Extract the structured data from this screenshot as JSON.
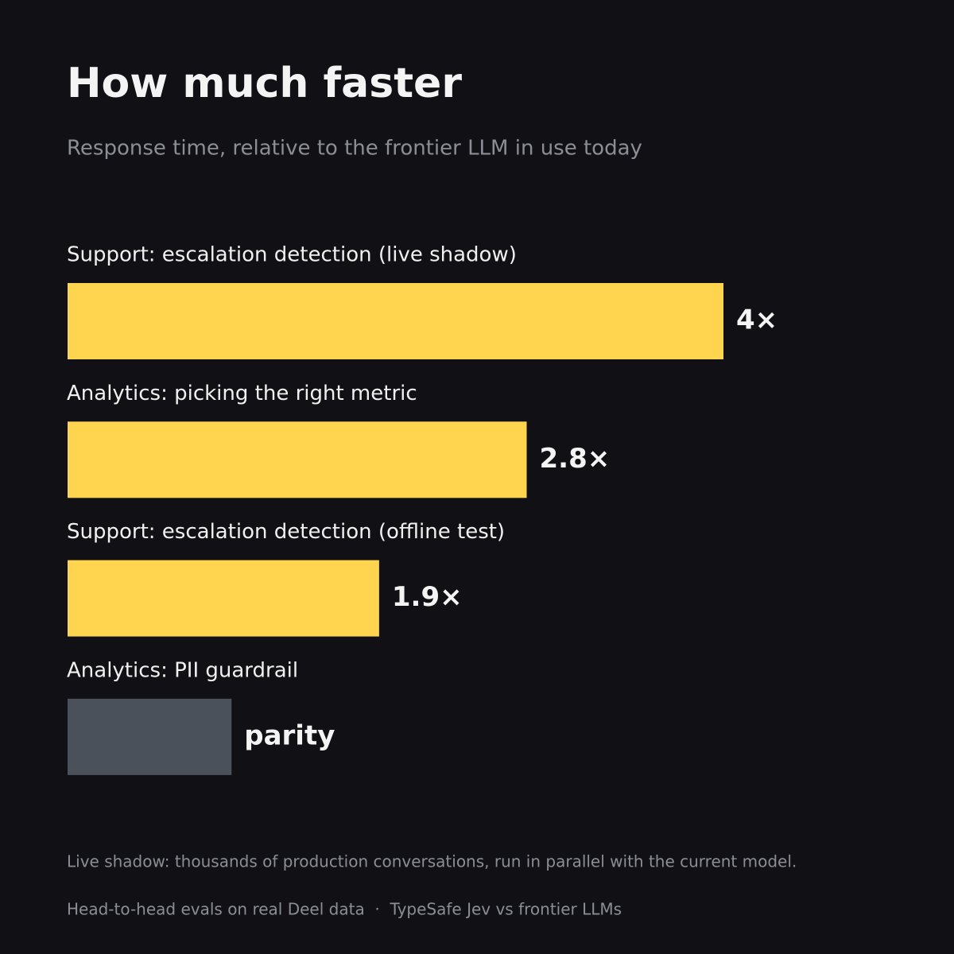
{
  "chart_data": {
    "type": "hbar",
    "title": "How much faster",
    "subtitle": "Response time, relative to the frontier LLM in use today",
    "categories": [
      "Support: escalation detection (live shadow)",
      "Analytics: picking the right metric",
      "Support: escalation detection (offline test)",
      "Analytics: PII guardrail"
    ],
    "values": [
      4,
      2.8,
      1.9,
      1
    ],
    "value_labels": [
      "4×",
      "2.8×",
      "1.9×",
      "parity"
    ],
    "colors": [
      "#ffd54f",
      "#ffd54f",
      "#ffd54f",
      "#4b515a"
    ],
    "xlim": [
      0,
      4
    ],
    "notes": [
      "Live shadow: thousands of production conversations, run in parallel with the current model.",
      "Head-to-head evals on real Deel data  ·  TypeSafe Jev vs frontier LLMs"
    ]
  }
}
